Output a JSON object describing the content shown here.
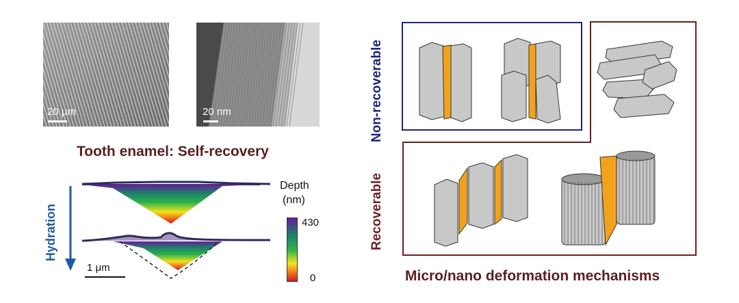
{
  "micrographs": [
    {
      "scale": "20 μm"
    },
    {
      "scale": "20 nm"
    }
  ],
  "left_title": "Tooth enamel: Self-recovery",
  "hydration_label": "Hydration",
  "colorbar": {
    "title_line1": "Depth",
    "title_line2": "(nm)",
    "max": "430",
    "min": "0"
  },
  "afm_scale": "1 μm",
  "right": {
    "non_recoverable_label": "Non-recoverable",
    "recoverable_label": "Recoverable",
    "caption": "Micro/nano deformation mechanisms"
  },
  "colors": {
    "title": "#5a1f1f",
    "hydration": "#1f5aa6",
    "non_recoverable": "#1a237e",
    "recoverable": "#6b1f1f",
    "orange": "#f2a21b"
  }
}
